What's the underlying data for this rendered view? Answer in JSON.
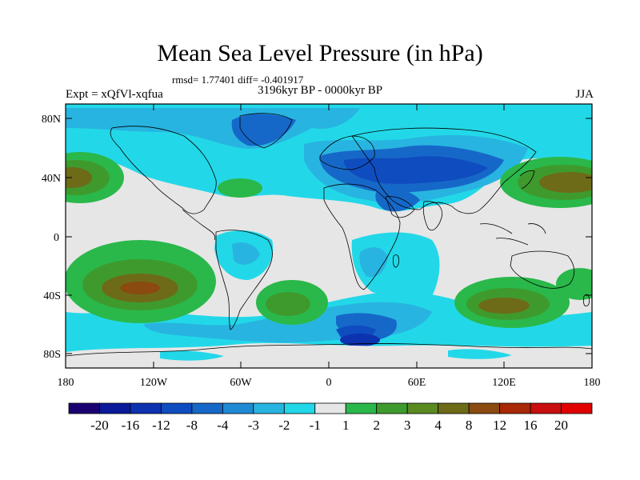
{
  "title": "Mean Sea Level Pressure (in hPa)",
  "stats": "rmsd= 1.77401 diff= -0.401917",
  "experiment": "Expt = xQfVl-xqfua",
  "period": "3196kyr BP - 0000kyr BP",
  "season": "JJA",
  "lat_ticks": [
    "80N",
    "40N",
    "0",
    "40S",
    "80S"
  ],
  "lon_ticks": [
    "180",
    "120W",
    "60W",
    "0",
    "60E",
    "120E",
    "180"
  ],
  "colorbar": {
    "labels": [
      "-20",
      "-16",
      "-12",
      "-8",
      "-4",
      "-3",
      "-2",
      "-1",
      "1",
      "2",
      "3",
      "4",
      "8",
      "12",
      "16",
      "20"
    ],
    "colors": [
      "#1a0070",
      "#0a1a9a",
      "#0d32b0",
      "#0f4cbf",
      "#1668c8",
      "#1f8ad4",
      "#28b4e0",
      "#22d8e8",
      "#e6e6e6",
      "#2ab84a",
      "#3f9a2e",
      "#5a8a20",
      "#6d6b18",
      "#8a4a10",
      "#a82808",
      "#c80e0e",
      "#e00000"
    ]
  },
  "chart_data": {
    "type": "map",
    "variable": "Mean Sea Level Pressure difference (hPa)",
    "projection": "cylindrical equidistant",
    "lon_range": [
      -180,
      180
    ],
    "lat_range": [
      -90,
      90
    ],
    "contour_levels": [
      -20,
      -16,
      -12,
      -8,
      -4,
      -3,
      -2,
      -1,
      1,
      2,
      3,
      4,
      8,
      12,
      16,
      20
    ],
    "features": [
      {
        "name": "North Pacific high anomaly (west)",
        "lon": -170,
        "lat": 40,
        "value": 8
      },
      {
        "name": "North Pacific high anomaly (east)",
        "lon": 160,
        "lat": 35,
        "value": 8
      },
      {
        "name": "South Pacific high anomaly",
        "lon": -130,
        "lat": -35,
        "value": 8
      },
      {
        "name": "South Atlantic high anomaly",
        "lon": -30,
        "lat": -38,
        "value": 4
      },
      {
        "name": "South Indian high anomaly",
        "lon": 120,
        "lat": -43,
        "value": 8
      },
      {
        "name": "North Atlantic high anomaly",
        "lon": -50,
        "lat": 32,
        "value": 2
      },
      {
        "name": "Eurasian low anomaly",
        "lon": 40,
        "lat": 45,
        "value": -4
      },
      {
        "name": "Antarctic low anomaly",
        "lon": 20,
        "lat": -68,
        "value": -8
      }
    ]
  }
}
